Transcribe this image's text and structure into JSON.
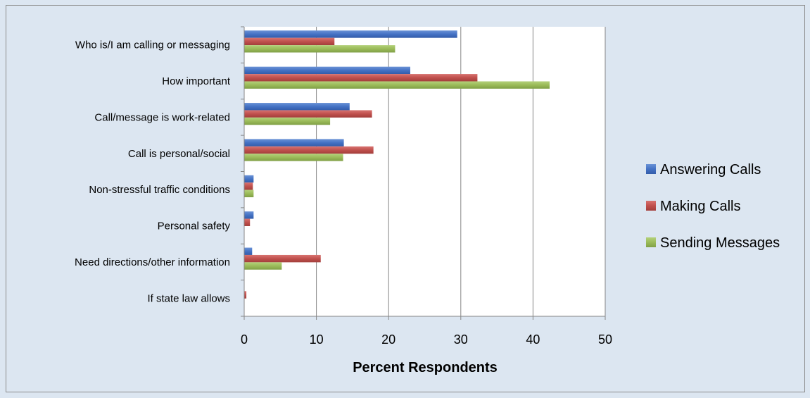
{
  "chart_data": {
    "type": "bar",
    "orientation": "horizontal",
    "categories": [
      "Who is/I am calling or messaging",
      "How important",
      "Call/message is work-related",
      "Call is personal/social",
      "Non-stressful traffic conditions",
      "Personal safety",
      "Need directions/other information",
      "If state law allows"
    ],
    "series": [
      {
        "name": "Answering Calls",
        "color": "#4472c4",
        "values": [
          29.5,
          23.0,
          14.6,
          13.8,
          1.3,
          1.3,
          1.1,
          0.0
        ]
      },
      {
        "name": "Making Calls",
        "color": "#c0504d",
        "values": [
          12.5,
          32.3,
          17.7,
          17.9,
          1.2,
          0.8,
          10.6,
          0.3
        ]
      },
      {
        "name": "Sending Messages",
        "color": "#9bbb59",
        "values": [
          20.9,
          42.3,
          11.9,
          13.7,
          1.3,
          0.0,
          5.2,
          0.0
        ]
      }
    ],
    "xlabel": "Percent Respondents",
    "ylabel": "",
    "title": "",
    "xlim": [
      0,
      50
    ],
    "xticks": [
      0,
      10,
      20,
      30,
      40,
      50
    ],
    "grid": true,
    "legend_position": "right"
  }
}
